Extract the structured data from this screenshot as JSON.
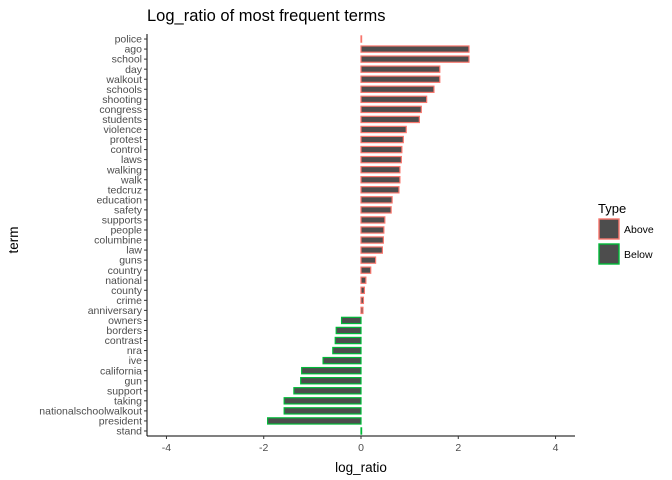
{
  "chart_data": {
    "type": "bar",
    "orientation": "horizontal",
    "title": "Log_ratio of most frequent terms",
    "xlabel": "log_ratio",
    "ylabel": "term",
    "xlim": [
      -4.4,
      4.4
    ],
    "xticks": [
      -4,
      -2,
      0,
      2,
      4
    ],
    "grid": false,
    "legend": {
      "title": "Type",
      "placement": "right",
      "entries": [
        {
          "label": "Above",
          "stroke": "#f8766d"
        },
        {
          "label": "Below",
          "stroke": "#00ba38"
        }
      ]
    },
    "fill_color": "#4d4d4d",
    "categories": [
      "police",
      "ago",
      "school",
      "day",
      "walkout",
      "schools",
      "shooting",
      "congress",
      "students",
      "violence",
      "protest",
      "control",
      "laws",
      "walking",
      "walk",
      "tedcruz",
      "education",
      "safety",
      "supports",
      "people",
      "columbine",
      "law",
      "guns",
      "country",
      "national",
      "county",
      "crime",
      "anniversary",
      "owners",
      "borders",
      "contrast",
      "nra",
      "ive",
      "california",
      "gun",
      "support",
      "taking",
      "nationalschoolwalkout",
      "president",
      "stand"
    ],
    "values": [
      0,
      2.22,
      2.22,
      1.62,
      1.62,
      1.5,
      1.35,
      1.24,
      1.2,
      0.93,
      0.87,
      0.84,
      0.83,
      0.8,
      0.8,
      0.78,
      0.64,
      0.62,
      0.49,
      0.47,
      0.46,
      0.44,
      0.3,
      0.2,
      0.1,
      0.07,
      0.05,
      0.04,
      -0.4,
      -0.51,
      -0.53,
      -0.58,
      -0.78,
      -1.22,
      -1.24,
      -1.38,
      -1.58,
      -1.58,
      -1.92,
      0
    ],
    "types": [
      "Above",
      "Above",
      "Above",
      "Above",
      "Above",
      "Above",
      "Above",
      "Above",
      "Above",
      "Above",
      "Above",
      "Above",
      "Above",
      "Above",
      "Above",
      "Above",
      "Above",
      "Above",
      "Above",
      "Above",
      "Above",
      "Above",
      "Above",
      "Above",
      "Above",
      "Above",
      "Above",
      "Above",
      "Below",
      "Below",
      "Below",
      "Below",
      "Below",
      "Below",
      "Below",
      "Below",
      "Below",
      "Below",
      "Below",
      "Below"
    ]
  }
}
